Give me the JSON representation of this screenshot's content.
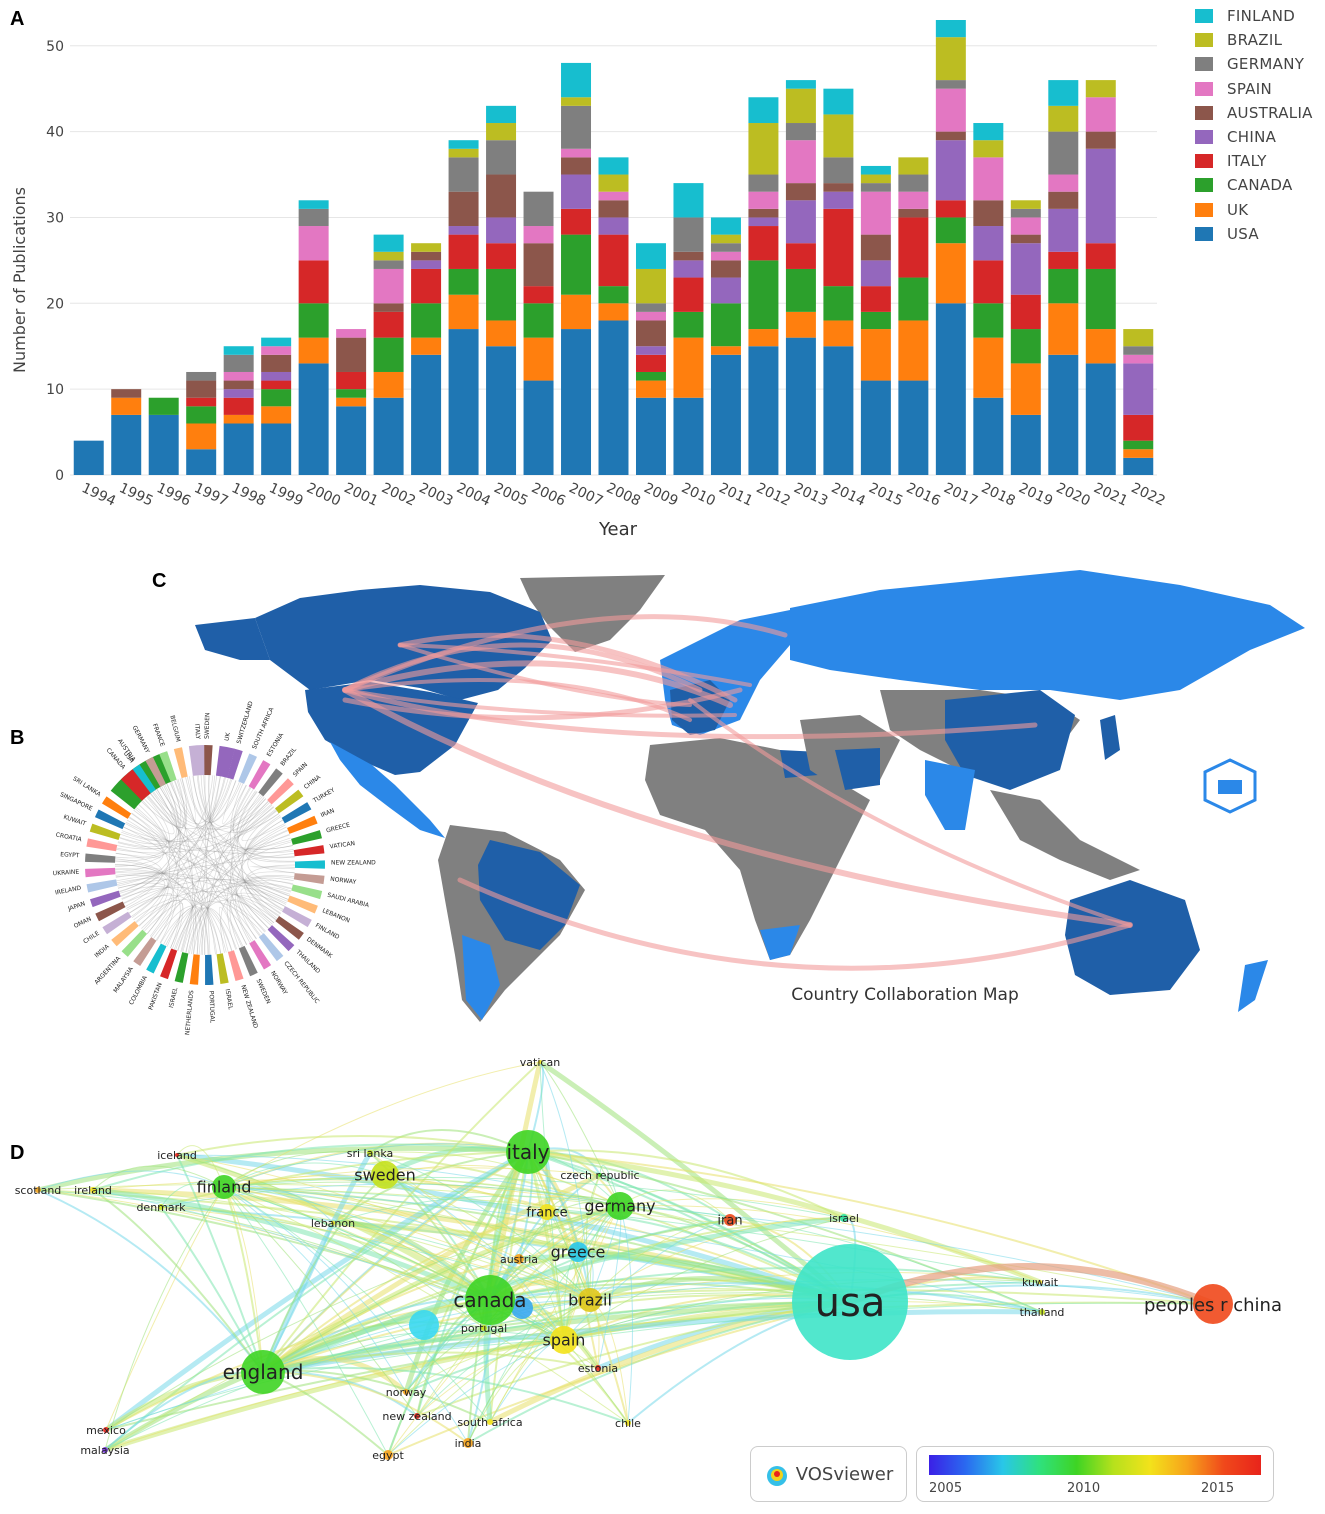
{
  "panel_labels": {
    "a": "A",
    "b": "B",
    "c": "C",
    "d": "D"
  },
  "chart_data": [
    {
      "type": "bar",
      "stacked": true,
      "ylabel": "Number of Publications",
      "xlabel": "Year",
      "ylim": [
        0,
        53
      ],
      "yticks": [
        0,
        10,
        20,
        30,
        40,
        50
      ],
      "grid": true,
      "legend_position": "right",
      "categories": [
        "1994",
        "1995",
        "1996",
        "1997",
        "1998",
        "1999",
        "2000",
        "2001",
        "2002",
        "2003",
        "2004",
        "2005",
        "2006",
        "2007",
        "2008",
        "2009",
        "2010",
        "2011",
        "2012",
        "2013",
        "2014",
        "2015",
        "2016",
        "2017",
        "2018",
        "2019",
        "2020",
        "2021",
        "2022"
      ],
      "series": [
        {
          "name": "USA",
          "color": "#1f77b4",
          "values": [
            4,
            7,
            7,
            3,
            6,
            6,
            13,
            8,
            9,
            14,
            17,
            15,
            11,
            17,
            18,
            9,
            9,
            14,
            15,
            16,
            15,
            11,
            11,
            20,
            9,
            7,
            14,
            13,
            2
          ]
        },
        {
          "name": "UK",
          "color": "#ff7f0e",
          "values": [
            0,
            2,
            0,
            3,
            1,
            2,
            3,
            1,
            3,
            2,
            4,
            3,
            5,
            4,
            2,
            2,
            7,
            1,
            2,
            3,
            3,
            6,
            7,
            7,
            7,
            6,
            6,
            4,
            1
          ]
        },
        {
          "name": "CANADA",
          "color": "#2ca02c",
          "values": [
            0,
            0,
            2,
            2,
            0,
            2,
            4,
            1,
            4,
            4,
            3,
            6,
            4,
            7,
            2,
            1,
            3,
            5,
            8,
            5,
            4,
            2,
            5,
            3,
            4,
            4,
            4,
            7,
            1
          ]
        },
        {
          "name": "ITALY",
          "color": "#d62728",
          "values": [
            0,
            0,
            0,
            1,
            2,
            1,
            5,
            2,
            3,
            4,
            4,
            3,
            2,
            3,
            6,
            2,
            4,
            0,
            4,
            3,
            9,
            3,
            7,
            2,
            5,
            4,
            2,
            3,
            3
          ]
        },
        {
          "name": "CHINA",
          "color": "#9467bd",
          "values": [
            0,
            0,
            0,
            0,
            1,
            1,
            0,
            0,
            0,
            1,
            1,
            3,
            0,
            4,
            2,
            1,
            2,
            3,
            1,
            5,
            2,
            3,
            0,
            7,
            4,
            6,
            5,
            11,
            6
          ]
        },
        {
          "name": "AUSTRALIA",
          "color": "#8c564b",
          "values": [
            0,
            1,
            0,
            2,
            1,
            2,
            0,
            4,
            1,
            1,
            4,
            5,
            5,
            2,
            2,
            3,
            1,
            2,
            1,
            2,
            1,
            3,
            1,
            1,
            3,
            1,
            2,
            2,
            0
          ]
        },
        {
          "name": "SPAIN",
          "color": "#e377c2",
          "values": [
            0,
            0,
            0,
            0,
            1,
            1,
            4,
            1,
            4,
            0,
            0,
            0,
            2,
            1,
            1,
            1,
            0,
            1,
            2,
            5,
            0,
            5,
            2,
            5,
            5,
            2,
            2,
            4,
            1
          ]
        },
        {
          "name": "GERMANY",
          "color": "#7f7f7f",
          "values": [
            0,
            0,
            0,
            1,
            2,
            0,
            2,
            0,
            1,
            0,
            4,
            4,
            4,
            5,
            0,
            1,
            4,
            1,
            2,
            2,
            3,
            1,
            2,
            1,
            0,
            1,
            5,
            0,
            1
          ]
        },
        {
          "name": "BRAZIL",
          "color": "#bcbd22",
          "values": [
            0,
            0,
            0,
            0,
            0,
            0,
            0,
            0,
            1,
            1,
            1,
            2,
            0,
            1,
            2,
            4,
            0,
            1,
            6,
            4,
            5,
            1,
            2,
            5,
            2,
            1,
            3,
            2,
            2
          ]
        },
        {
          "name": "FINLAND",
          "color": "#17becf",
          "values": [
            0,
            0,
            0,
            0,
            1,
            1,
            1,
            0,
            2,
            0,
            1,
            2,
            0,
            4,
            2,
            3,
            4,
            2,
            3,
            1,
            3,
            1,
            0,
            2,
            2,
            0,
            3,
            0,
            0
          ]
        }
      ]
    },
    {
      "type": "other",
      "labels": [
        "SWITZERLAND",
        "SOUTH AFRICA",
        "ESTONIA",
        "BRAZIL",
        "SPAIN",
        "CHINA",
        "TURKEY",
        "IRAN",
        "GREECE",
        "VATICAN",
        "NEW ZEALAND",
        "NORWAY",
        "SAUDI ARABIA",
        "LEBANON",
        "FINLAND",
        "DENMARK",
        "THAILAND",
        "CZECH REPUBLIC",
        "NORWAY",
        "SWEDEN",
        "NEW ZEALAND",
        "ISRAEL",
        "PORTUGAL",
        "NETHERLANDS",
        "ISRAEL",
        "PAKISTAN",
        "COLOMBIA",
        "MALAYSIA",
        "ARGENTINA",
        "INDIA",
        "CHILE",
        "OMAN",
        "JAPAN",
        "IRELAND",
        "UKRAINE",
        "EGYPT",
        "CROATIA",
        "KUWAIT",
        "SINGAPORE",
        "SRI LANKA",
        "USA",
        "CANADA",
        "AUSTRIA",
        "GERMANY",
        "FRANCE",
        "BELGIUM",
        "ITALY",
        "SWEDEN",
        "UK"
      ]
    },
    {
      "type": "other",
      "title": "Country Collaboration Map"
    },
    {
      "type": "scatter",
      "legend_position": "bottom-right",
      "colorbar": {
        "ticks": [
          2005,
          2010,
          2015
        ]
      },
      "nodes": [
        "vatican",
        "italy",
        "sri lanka",
        "sweden",
        "iceland",
        "finland",
        "czech republic",
        "scotland",
        "ireland",
        "denmark",
        "germany",
        "france",
        "lebanon",
        "iran",
        "israel",
        "greece",
        "austria",
        "canada",
        "usa",
        "kuwait",
        "peoples r china",
        "brazil",
        "thailand",
        "portugal",
        "spain",
        "estonia",
        "england",
        "norway",
        "new zealand",
        "south africa",
        "chile",
        "mexico",
        "india",
        "malaysia",
        "egypt"
      ],
      "logo": "VOSviewer"
    }
  ]
}
